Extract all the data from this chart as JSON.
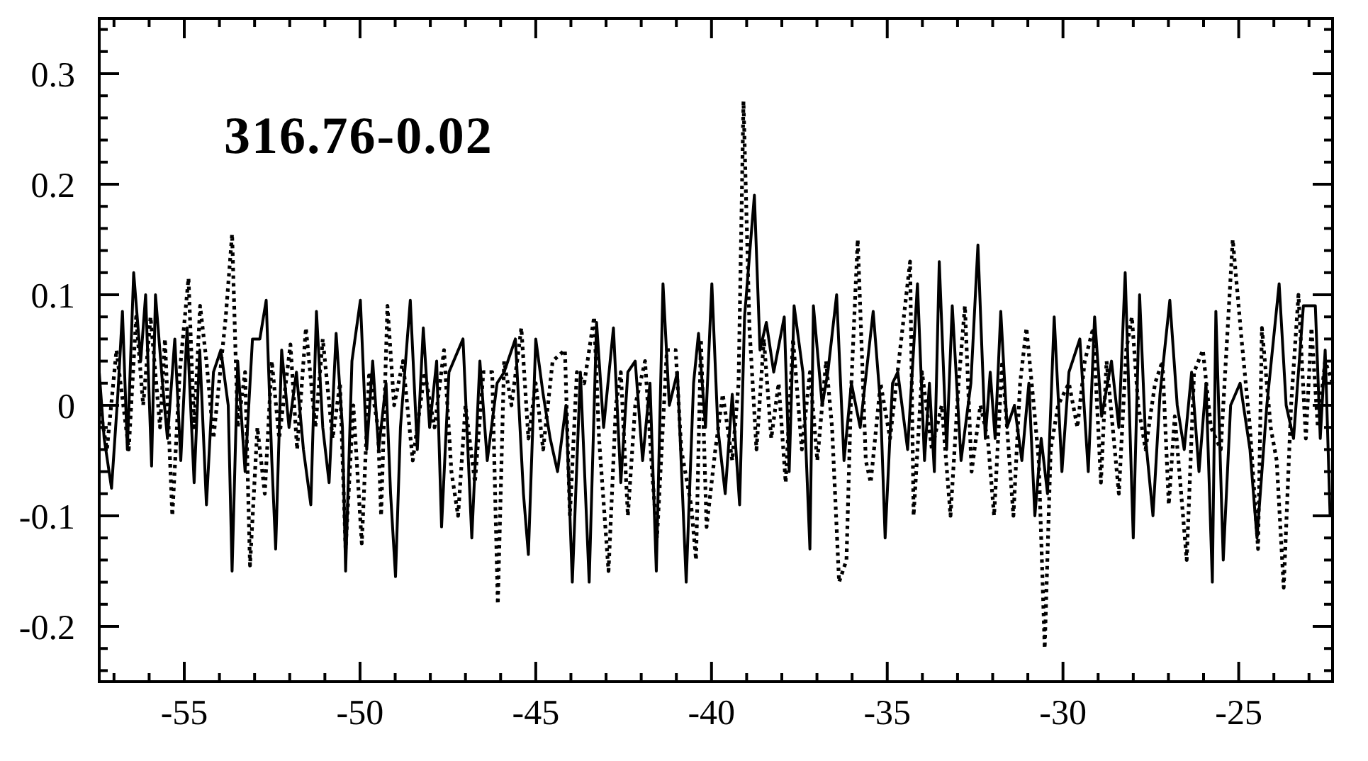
{
  "chart_data": {
    "type": "line",
    "title": "316.76-0.02",
    "xlim": [
      -57.42,
      -22.33
    ],
    "ylim": [
      -0.25,
      0.35
    ],
    "xticks": [
      {
        "value": -57,
        "label": null
      },
      {
        "value": -56,
        "label": null
      },
      -55,
      {
        "value": -54,
        "label": null
      },
      {
        "value": -53,
        "label": null
      },
      {
        "value": -52,
        "label": null
      },
      {
        "value": -51,
        "label": null
      },
      -50,
      {
        "value": -49,
        "label": null
      },
      {
        "value": -48,
        "label": null
      },
      {
        "value": -47,
        "label": null
      },
      {
        "value": -46,
        "label": null
      },
      -45,
      {
        "value": -44,
        "label": null
      },
      {
        "value": -43,
        "label": null
      },
      {
        "value": -42,
        "label": null
      },
      {
        "value": -41,
        "label": null
      },
      -40,
      {
        "value": -39,
        "label": null
      },
      {
        "value": -38,
        "label": null
      },
      {
        "value": -37,
        "label": null
      },
      {
        "value": -36,
        "label": null
      },
      -35,
      {
        "value": -34,
        "label": null
      },
      {
        "value": -33,
        "label": null
      },
      {
        "value": -32,
        "label": null
      },
      {
        "value": -31,
        "label": null
      },
      -30,
      {
        "value": -29,
        "label": null
      },
      {
        "value": -28,
        "label": null
      },
      {
        "value": -27,
        "label": null
      },
      {
        "value": -26,
        "label": null
      },
      -25,
      {
        "value": -24,
        "label": null
      },
      {
        "value": -23,
        "label": null
      }
    ],
    "yticks": [
      {
        "value": -0.24,
        "label": null
      },
      {
        "value": -0.22,
        "label": null
      },
      -0.2,
      {
        "value": -0.18,
        "label": null
      },
      {
        "value": -0.16,
        "label": null
      },
      {
        "value": -0.14,
        "label": null
      },
      {
        "value": -0.12,
        "label": null
      },
      -0.1,
      {
        "value": -0.08,
        "label": null
      },
      {
        "value": -0.06,
        "label": null
      },
      {
        "value": -0.04,
        "label": null
      },
      {
        "value": -0.02,
        "label": null
      },
      0,
      {
        "value": 0.02,
        "label": null
      },
      {
        "value": 0.04,
        "label": null
      },
      {
        "value": 0.06,
        "label": null
      },
      {
        "value": 0.08,
        "label": null
      },
      0.1,
      {
        "value": 0.12,
        "label": null
      },
      {
        "value": 0.14,
        "label": null
      },
      {
        "value": 0.16,
        "label": null
      },
      {
        "value": 0.18,
        "label": null
      },
      0.2,
      {
        "value": 0.22,
        "label": null
      },
      {
        "value": 0.24,
        "label": null
      },
      {
        "value": 0.26,
        "label": null
      },
      {
        "value": 0.28,
        "label": null
      },
      0.3,
      {
        "value": 0.32,
        "label": null
      },
      {
        "value": 0.34,
        "label": null
      }
    ],
    "series": [
      {
        "color": "#000000",
        "line_style": "solid",
        "x": [
          -57.42,
          -57.28,
          -57.07,
          -56.89,
          -56.76,
          -56.62,
          -56.44,
          -56.24,
          -56.1,
          -55.93,
          -55.82,
          -55.62,
          -55.48,
          -55.27,
          -55.1,
          -54.92,
          -54.72,
          -54.56,
          -54.37,
          -54.17,
          -53.96,
          -53.75,
          -53.64,
          -53.48,
          -53.27,
          -53.06,
          -52.85,
          -52.67,
          -52.51,
          -52.4,
          -52.23,
          -52.02,
          -51.81,
          -51.61,
          -51.4,
          -51.24,
          -51.06,
          -50.88,
          -50.68,
          -50.5,
          -50.41,
          -50.23,
          -49.99,
          -49.81,
          -49.64,
          -49.47,
          -49.26,
          -49.13,
          -48.99,
          -48.85,
          -48.57,
          -48.37,
          -48.2,
          -48.02,
          -47.82,
          -47.68,
          -47.47,
          -47.07,
          -46.82,
          -46.59,
          -46.38,
          -46.1,
          -45.9,
          -45.58,
          -45.35,
          -45.21,
          -45.0,
          -44.79,
          -44.59,
          -44.38,
          -44.14,
          -43.96,
          -43.73,
          -43.48,
          -43.27,
          -43.07,
          -42.79,
          -42.58,
          -42.38,
          -42.17,
          -41.96,
          -41.75,
          -41.57,
          -41.38,
          -41.2,
          -40.97,
          -40.72,
          -40.51,
          -40.37,
          -40.17,
          -39.99,
          -39.82,
          -39.61,
          -39.41,
          -39.2,
          -39.06,
          -38.78,
          -38.62,
          -38.44,
          -38.23,
          -37.93,
          -37.79,
          -37.65,
          -37.4,
          -37.2,
          -37.1,
          -36.85,
          -36.69,
          -36.44,
          -36.23,
          -36.02,
          -35.77,
          -35.4,
          -35.19,
          -35.06,
          -34.85,
          -34.7,
          -34.42,
          -34.14,
          -33.94,
          -33.8,
          -33.66,
          -33.52,
          -33.31,
          -33.15,
          -32.9,
          -32.62,
          -32.42,
          -32.21,
          -32.07,
          -31.93,
          -31.77,
          -31.59,
          -31.38,
          -31.17,
          -30.97,
          -30.8,
          -30.62,
          -30.44,
          -30.25,
          -30.03,
          -29.83,
          -29.52,
          -29.28,
          -29.1,
          -28.9,
          -28.62,
          -28.41,
          -28.23,
          -28.0,
          -27.82,
          -27.65,
          -27.44,
          -27.24,
          -26.96,
          -26.75,
          -26.55,
          -26.34,
          -26.13,
          -25.93,
          -25.75,
          -25.65,
          -25.44,
          -25.23,
          -24.96,
          -24.68,
          -24.48,
          -24.2,
          -23.85,
          -23.65,
          -23.44,
          -23.16,
          -22.82,
          -22.68,
          -22.54,
          -22.4,
          -22.33
        ],
        "values": [
          0.03,
          -0.03,
          -0.075,
          0.01,
          0.085,
          -0.04,
          0.12,
          0.04,
          0.1,
          -0.055,
          0.1,
          0.02,
          -0.03,
          0.06,
          -0.05,
          0.07,
          -0.07,
          0.05,
          -0.09,
          0.03,
          0.05,
          0.0,
          -0.15,
          0.04,
          -0.06,
          0.06,
          0.06,
          0.095,
          -0.05,
          -0.13,
          0.05,
          -0.02,
          0.03,
          -0.04,
          -0.09,
          0.085,
          -0.02,
          -0.07,
          0.065,
          -0.02,
          -0.15,
          0.04,
          0.095,
          -0.04,
          0.04,
          -0.04,
          0.02,
          -0.08,
          -0.155,
          -0.02,
          0.095,
          -0.04,
          0.07,
          -0.02,
          0.04,
          -0.11,
          0.03,
          0.06,
          -0.12,
          0.04,
          -0.05,
          0.02,
          0.03,
          0.06,
          -0.08,
          -0.135,
          0.06,
          0.01,
          -0.03,
          -0.06,
          0.0,
          -0.16,
          0.03,
          -0.16,
          0.075,
          -0.02,
          0.07,
          -0.07,
          0.03,
          0.04,
          -0.05,
          0.02,
          -0.15,
          0.11,
          0.0,
          0.03,
          -0.16,
          0.02,
          0.065,
          -0.02,
          0.11,
          -0.02,
          -0.08,
          0.01,
          -0.09,
          0.08,
          0.19,
          0.05,
          0.075,
          0.03,
          0.08,
          -0.06,
          0.09,
          0.03,
          -0.13,
          0.09,
          0.0,
          0.03,
          0.1,
          -0.05,
          0.02,
          -0.02,
          0.085,
          0.0,
          -0.12,
          0.02,
          0.03,
          -0.04,
          0.11,
          -0.05,
          0.02,
          -0.06,
          0.13,
          -0.04,
          0.09,
          -0.05,
          0.02,
          0.145,
          -0.03,
          0.03,
          -0.03,
          0.085,
          -0.02,
          0.0,
          -0.05,
          0.02,
          -0.1,
          -0.03,
          -0.08,
          0.08,
          -0.06,
          0.03,
          0.06,
          -0.06,
          0.08,
          -0.01,
          0.04,
          -0.02,
          0.12,
          -0.12,
          0.1,
          -0.03,
          -0.1,
          0.01,
          0.095,
          0.0,
          -0.04,
          0.03,
          -0.06,
          0.02,
          -0.16,
          0.085,
          -0.14,
          0.0,
          0.02,
          -0.04,
          -0.12,
          0.0,
          0.11,
          0.0,
          -0.03,
          0.09,
          0.09,
          -0.03,
          0.05,
          -0.1,
          -0.1
        ]
      },
      {
        "color": "#000000",
        "line_style": "dotted",
        "x": [
          -57.41,
          -57.2,
          -56.93,
          -56.58,
          -56.37,
          -56.17,
          -55.96,
          -55.69,
          -55.55,
          -55.34,
          -55.13,
          -54.88,
          -54.72,
          -54.55,
          -54.37,
          -54.17,
          -53.82,
          -53.64,
          -53.48,
          -53.27,
          -53.13,
          -52.92,
          -52.71,
          -52.51,
          -52.3,
          -51.98,
          -51.79,
          -51.54,
          -51.27,
          -51.06,
          -50.78,
          -50.57,
          -50.41,
          -50.19,
          -49.95,
          -49.74,
          -49.49,
          -49.4,
          -49.22,
          -49.03,
          -48.78,
          -48.5,
          -48.16,
          -47.88,
          -47.61,
          -47.4,
          -47.21,
          -47.0,
          -46.73,
          -46.49,
          -46.24,
          -46.08,
          -45.9,
          -45.69,
          -45.41,
          -45.21,
          -45.0,
          -44.79,
          -44.52,
          -44.17,
          -44.03,
          -43.83,
          -43.62,
          -43.34,
          -43.2,
          -42.93,
          -42.72,
          -42.58,
          -42.38,
          -42.17,
          -41.89,
          -41.69,
          -41.55,
          -41.27,
          -41.02,
          -40.86,
          -40.58,
          -40.44,
          -40.3,
          -40.14,
          -39.89,
          -39.68,
          -39.41,
          -39.23,
          -39.09,
          -38.92,
          -38.72,
          -38.51,
          -38.3,
          -38.09,
          -37.89,
          -37.68,
          -37.43,
          -37.2,
          -36.99,
          -36.74,
          -36.57,
          -36.37,
          -36.16,
          -36.02,
          -35.84,
          -35.61,
          -35.47,
          -35.19,
          -34.92,
          -34.35,
          -34.25,
          -34.01,
          -33.73,
          -33.45,
          -33.2,
          -32.97,
          -32.79,
          -32.6,
          -32.35,
          -32.14,
          -31.96,
          -31.73,
          -31.41,
          -31.22,
          -31.04,
          -30.83,
          -30.69,
          -30.52,
          -30.35,
          -30.14,
          -29.83,
          -29.59,
          -29.38,
          -29.14,
          -28.92,
          -28.76,
          -28.41,
          -28.2,
          -28.04,
          -27.86,
          -27.65,
          -27.38,
          -27.17,
          -26.99,
          -26.82,
          -26.48,
          -26.27,
          -26.02,
          -25.79,
          -25.51,
          -25.17,
          -24.92,
          -24.68,
          -24.45,
          -24.34,
          -24.09,
          -23.92,
          -23.72,
          -23.51,
          -23.3,
          -23.09,
          -22.93,
          -22.75,
          -22.54,
          -22.33
        ],
        "values": [
          0.0,
          -0.04,
          0.05,
          -0.04,
          0.08,
          0.0,
          0.08,
          -0.02,
          0.06,
          -0.1,
          0.03,
          0.115,
          -0.02,
          0.09,
          0.04,
          -0.03,
          0.08,
          0.155,
          -0.02,
          0.03,
          -0.145,
          -0.02,
          -0.08,
          0.04,
          -0.03,
          0.055,
          -0.04,
          0.07,
          -0.02,
          0.06,
          -0.03,
          0.02,
          -0.13,
          0.0,
          -0.125,
          0.03,
          -0.02,
          -0.1,
          0.09,
          0.0,
          0.04,
          -0.05,
          0.03,
          -0.02,
          0.05,
          -0.06,
          -0.1,
          0.0,
          -0.07,
          0.03,
          0.03,
          -0.18,
          0.04,
          0.0,
          0.07,
          -0.03,
          0.02,
          -0.04,
          0.04,
          0.05,
          -0.1,
          0.03,
          0.02,
          0.08,
          -0.03,
          -0.15,
          0.0,
          0.03,
          -0.1,
          0.0,
          0.04,
          -0.06,
          -0.12,
          0.05,
          0.05,
          -0.04,
          -0.09,
          -0.14,
          0.06,
          -0.11,
          -0.04,
          0.01,
          -0.05,
          0.02,
          0.275,
          0.07,
          -0.04,
          0.06,
          -0.03,
          0.02,
          -0.07,
          0.06,
          -0.04,
          0.03,
          -0.05,
          0.04,
          -0.02,
          -0.16,
          -0.14,
          0.02,
          0.15,
          -0.05,
          -0.07,
          0.02,
          -0.03,
          0.13,
          -0.1,
          0.03,
          -0.04,
          0.0,
          -0.1,
          0.02,
          0.09,
          -0.06,
          0.0,
          -0.03,
          -0.1,
          0.04,
          -0.1,
          0.02,
          0.07,
          0.0,
          -0.05,
          -0.22,
          -0.04,
          0.0,
          0.02,
          -0.02,
          0.04,
          0.07,
          -0.07,
          0.04,
          -0.08,
          0.05,
          0.08,
          0.0,
          -0.04,
          0.02,
          0.04,
          -0.09,
          -0.01,
          -0.14,
          0.03,
          0.05,
          -0.02,
          -0.04,
          0.15,
          0.06,
          -0.02,
          -0.13,
          0.07,
          -0.02,
          -0.05,
          -0.165,
          0.0,
          0.1,
          -0.03,
          0.07,
          -0.02,
          0.04,
          0.02
        ]
      }
    ]
  }
}
